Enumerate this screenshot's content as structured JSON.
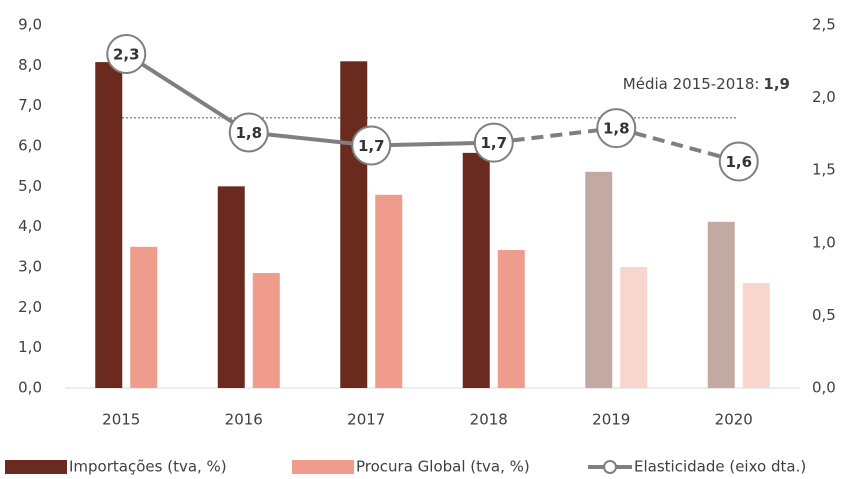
{
  "chart_data": {
    "type": "bar_line",
    "categories": [
      "2015",
      "2016",
      "2017",
      "2018",
      "2019",
      "2020"
    ],
    "series": [
      {
        "name": "Importações (tva, %)",
        "type": "bar",
        "color": "#6b2a1e",
        "point_colors": [
          "#6b2a1e",
          "#6b2a1e",
          "#6b2a1e",
          "#6b2a1e",
          "#c2aaa2",
          "#c2aaa2"
        ],
        "values": [
          8.08,
          5.0,
          8.1,
          5.83,
          5.36,
          4.12
        ]
      },
      {
        "name": "Procura Global (tva, %)",
        "type": "bar",
        "color": "#ef9c8c",
        "point_colors": [
          "#ef9c8c",
          "#ef9c8c",
          "#ef9c8c",
          "#ef9c8c",
          "#f8d5cd",
          "#f8d5cd"
        ],
        "values": [
          3.5,
          2.85,
          4.79,
          3.42,
          3.0,
          2.6
        ]
      },
      {
        "name": "Elasticidade (eixo dta.)",
        "type": "line",
        "axis": "y2",
        "color": "#7f7f7f",
        "segment_styles": [
          "solid",
          "solid",
          "solid",
          "dashed",
          "dashed"
        ],
        "values": [
          2.3,
          1.76,
          1.67,
          1.69,
          1.79,
          1.56
        ],
        "value_labels": [
          "2,3",
          "1,8",
          "1,7",
          "1,7",
          "1,8",
          "1,6"
        ]
      }
    ],
    "ylim": [
      0,
      9
    ],
    "yticks": [
      {
        "value": 0,
        "label": "0,0"
      },
      {
        "value": 1,
        "label": "1,0"
      },
      {
        "value": 2,
        "label": "2,0"
      },
      {
        "value": 3,
        "label": "3,0"
      },
      {
        "value": 4,
        "label": "4,0"
      },
      {
        "value": 5,
        "label": "5,0"
      },
      {
        "value": 6,
        "label": "6,0"
      },
      {
        "value": 7,
        "label": "7,0"
      },
      {
        "value": 8,
        "label": "8,0"
      },
      {
        "value": 9,
        "label": "9,0"
      }
    ],
    "y2lim": [
      0,
      2.5
    ],
    "y2ticks": [
      {
        "value": 0,
        "label": "0,0"
      },
      {
        "value": 0.5,
        "label": "0,5"
      },
      {
        "value": 1,
        "label": "1,0"
      },
      {
        "value": 1.5,
        "label": "1,5"
      },
      {
        "value": 2,
        "label": "2,0"
      },
      {
        "value": 2.5,
        "label": "2,5"
      }
    ],
    "annotations": [
      {
        "text": "Média 2015-2018:",
        "value": 1.86,
        "value_label": "1,9",
        "axis": "y2"
      }
    ]
  }
}
